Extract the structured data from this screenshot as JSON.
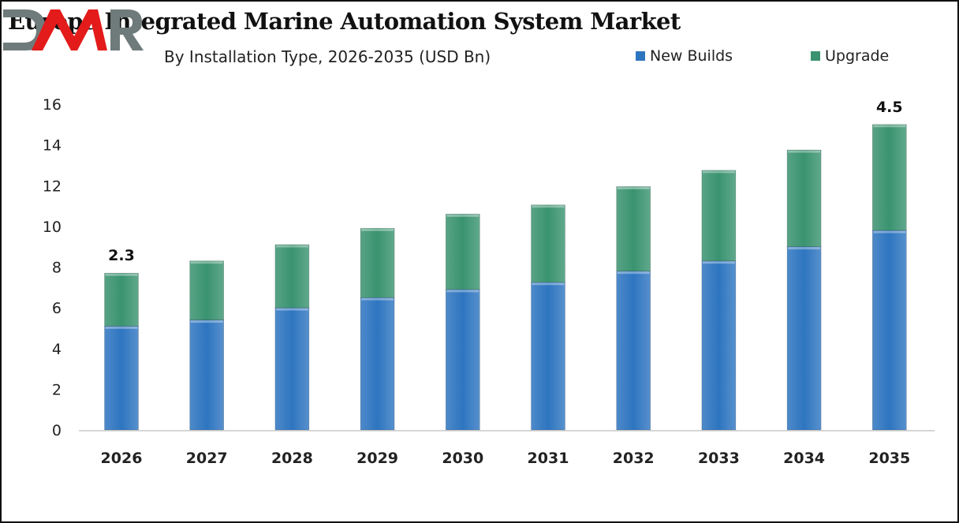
{
  "title": "Europe Integrated Marine Automation System Market",
  "logo_text": "DMR",
  "colors": {
    "new_builds": "#2e75c0",
    "upgrade": "#3a9370",
    "axis": "#c8c8c8",
    "logo_grey": "#6f7b7b",
    "logo_red": "#e41b1b"
  },
  "chart_data": {
    "type": "bar",
    "stacked": true,
    "title": "Europe Integrated Marine Automation System Market",
    "subtitle": "By Installation Type, 2026-2035 (USD Bn)",
    "xlabel": "",
    "ylabel": "",
    "ylim": [
      0,
      16
    ],
    "yticks": [
      0,
      2,
      4,
      6,
      8,
      10,
      12,
      14,
      16
    ],
    "grid": false,
    "legend_position": "top-right",
    "categories": [
      "2026",
      "2027",
      "2028",
      "2029",
      "2030",
      "2031",
      "2032",
      "2033",
      "2034",
      "2035"
    ],
    "series": [
      {
        "name": "New Builds",
        "color": "#2e75c0",
        "values": [
          5.1,
          5.4,
          6.0,
          6.5,
          6.9,
          7.25,
          7.8,
          8.3,
          9.0,
          9.8
        ]
      },
      {
        "name": "Upgrade",
        "color": "#3a9370",
        "values": [
          2.6,
          2.9,
          3.1,
          3.4,
          3.7,
          3.8,
          4.15,
          4.45,
          4.75,
          5.2
        ]
      }
    ],
    "annotations": [
      {
        "category": "2026",
        "text": "2.3"
      },
      {
        "category": "2035",
        "text": "4.5"
      }
    ]
  }
}
